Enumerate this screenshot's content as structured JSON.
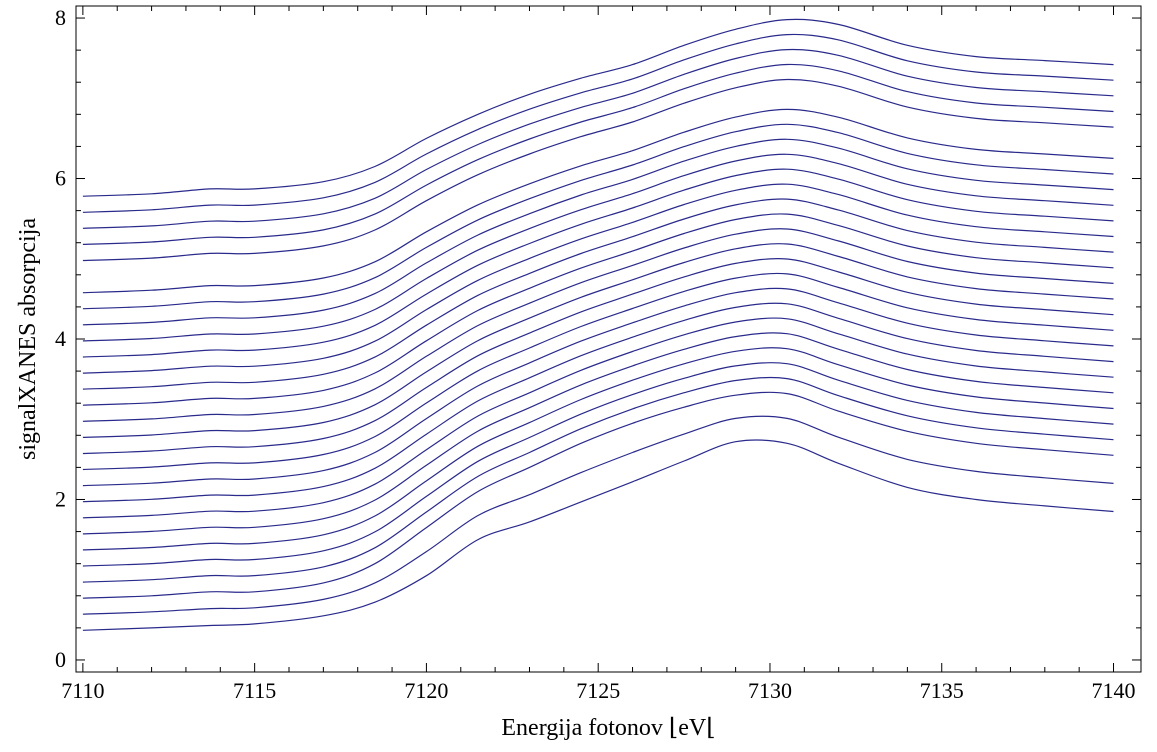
{
  "chart_data": {
    "type": "line",
    "title": "",
    "xlabel": "Energija fotonov ⌊eV⌊",
    "ylabel": "signalXANES absorpcija",
    "xlim": [
      7109.8,
      7140.8
    ],
    "ylim": [
      -0.15,
      8.15
    ],
    "xticks": [
      7110,
      7115,
      7120,
      7125,
      7130,
      7135,
      7140
    ],
    "yticks": [
      0,
      2,
      4,
      6,
      8
    ],
    "xtick_labels": [
      "7110",
      "7115",
      "7120",
      "7125",
      "7130",
      "7135",
      "7140"
    ],
    "ytick_labels": [
      "0",
      "2",
      "4",
      "6",
      "8"
    ],
    "grid": false,
    "legend": "none",
    "line_color": "#2a2a8c",
    "x": [
      7110,
      7112,
      7113.7,
      7115,
      7117,
      7118.5,
      7120,
      7121.5,
      7123,
      7124.5,
      7126,
      7127.5,
      7129,
      7130.5,
      7132,
      7134,
      7136,
      7138,
      7140
    ],
    "series_offsets": [
      0,
      0.2,
      0.4,
      0.6,
      0.8,
      1.0,
      1.2,
      1.4,
      1.6,
      1.8,
      2.0,
      2.2,
      2.4,
      2.6,
      2.8,
      3.0,
      3.2,
      3.4,
      3.6,
      3.8,
      4.0,
      4.2,
      4.6,
      4.8,
      5.0,
      5.2,
      5.4
    ],
    "series": [
      {
        "values": [
          0.37,
          0.4,
          0.43,
          0.45,
          0.55,
          0.72,
          1.05,
          1.5,
          1.72,
          1.97,
          2.22,
          2.48,
          2.72,
          2.7,
          2.45,
          2.15,
          2.0,
          1.92,
          1.85
        ]
      },
      {
        "values": [
          0.77,
          0.8,
          0.85,
          0.85,
          0.96,
          1.2,
          1.65,
          2.1,
          2.4,
          2.7,
          2.95,
          3.15,
          3.3,
          3.32,
          3.1,
          2.85,
          2.7,
          2.62,
          2.55
        ]
      },
      {
        "values": [
          5.78,
          5.81,
          5.87,
          5.87,
          5.96,
          6.15,
          6.5,
          6.8,
          7.05,
          7.25,
          7.42,
          7.66,
          7.86,
          7.98,
          7.92,
          7.66,
          7.52,
          7.47,
          7.42
        ]
      }
    ]
  }
}
